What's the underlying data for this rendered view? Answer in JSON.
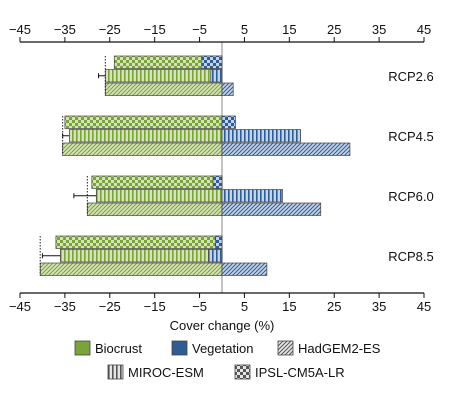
{
  "chart_data": {
    "type": "bar",
    "orientation": "horizontal",
    "xlabel": "Cover change (%)",
    "xlim": [
      -45,
      45
    ],
    "x_ticks": [
      -45,
      -35,
      -25,
      -15,
      -5,
      5,
      15,
      25,
      35,
      45
    ],
    "x_tick_labels": [
      "−45",
      "−35",
      "−25",
      "−15",
      "−5",
      "5",
      "15",
      "25",
      "35",
      "45"
    ],
    "groups": [
      {
        "label": "RCP2.6",
        "rows": [
          {
            "model": "IPSL-CM5A-LR",
            "biocrust": -24,
            "vegetation": -4.5,
            "error": 0
          },
          {
            "model": "MIROC-ESM",
            "biocrust": -26,
            "vegetation": -2.5,
            "error": 1.5
          },
          {
            "model": "HadGEM2-ES",
            "biocrust": -26,
            "vegetation": 2.5,
            "error": 0
          }
        ]
      },
      {
        "label": "RCP4.5",
        "rows": [
          {
            "model": "IPSL-CM5A-LR",
            "biocrust": -35,
            "vegetation": 3,
            "error": 0
          },
          {
            "model": "MIROC-ESM",
            "biocrust": -34,
            "vegetation": 17.5,
            "error": 1.5
          },
          {
            "model": "HadGEM2-ES",
            "biocrust": -35.5,
            "vegetation": 28.5,
            "error": 0
          }
        ]
      },
      {
        "label": "RCP6.0",
        "rows": [
          {
            "model": "IPSL-CM5A-LR",
            "biocrust": -29,
            "vegetation": -2,
            "error": 0
          },
          {
            "model": "MIROC-ESM",
            "biocrust": -28,
            "vegetation": 13.5,
            "error": 5
          },
          {
            "model": "HadGEM2-ES",
            "biocrust": -30,
            "vegetation": 22,
            "error": 0
          }
        ]
      },
      {
        "label": "RCP8.5",
        "rows": [
          {
            "model": "IPSL-CM5A-LR",
            "biocrust": -37,
            "vegetation": -1.5,
            "error": 0
          },
          {
            "model": "MIROC-ESM",
            "biocrust": -36,
            "vegetation": -3,
            "error": 4
          },
          {
            "model": "HadGEM2-ES",
            "biocrust": -40.5,
            "vegetation": 10,
            "error": 0
          }
        ]
      }
    ],
    "legend": [
      {
        "key": "biocrust",
        "label": "Biocrust",
        "kind": "color"
      },
      {
        "key": "vegetation",
        "label": "Vegetation",
        "kind": "color"
      },
      {
        "key": "HadGEM2-ES",
        "label": "HadGEM2-ES",
        "kind": "pattern"
      },
      {
        "key": "MIROC-ESM",
        "label": "MIROC-ESM",
        "kind": "pattern"
      },
      {
        "key": "IPSL-CM5A-LR",
        "label": "IPSL-CM5A-LR",
        "kind": "pattern"
      }
    ],
    "legend_placement": "bottom",
    "colors": {
      "biocrust": "#7aa33a",
      "biocrust_light": "#d6e2ba",
      "vegetation": "#2f5d93",
      "vegetation_light": "#c5d3e6",
      "axis": "#111111",
      "zero_line": "#888888"
    }
  }
}
